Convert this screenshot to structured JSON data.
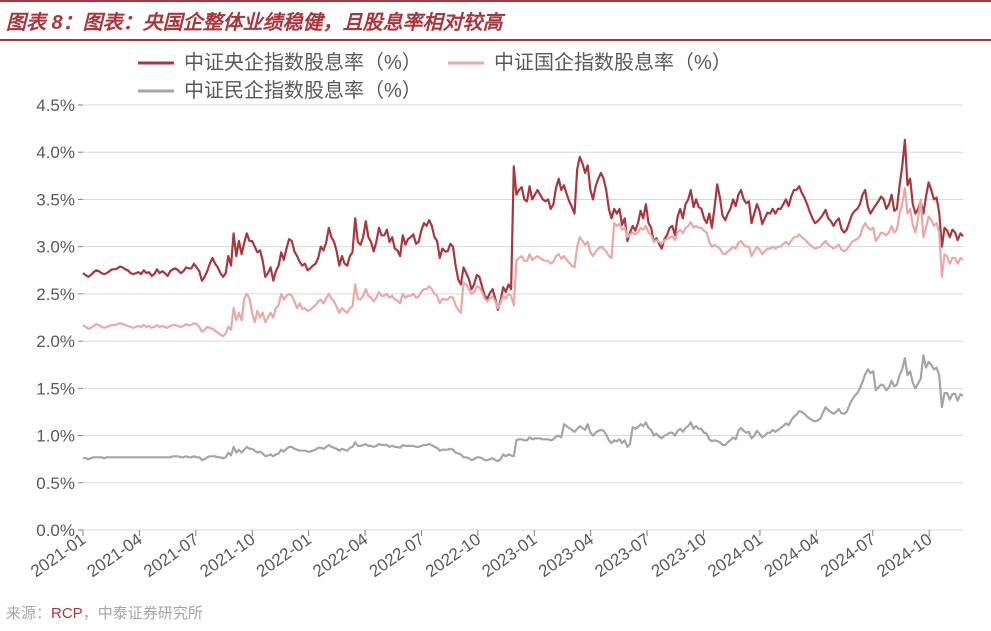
{
  "title": "图表 8：图表：央国企整体业绩稳健，且股息率相对较高",
  "source_prefix": "来源：",
  "source_rcp": "RCP",
  "source_suffix": "，中泰证券研究所",
  "chart": {
    "type": "line",
    "ylim": [
      0.0,
      4.5
    ],
    "ytick_step": 0.5,
    "y_suffix": "%",
    "x_labels": [
      "2021-01",
      "2021-04",
      "2021-07",
      "2021-10",
      "2022-01",
      "2022-04",
      "2022-07",
      "2022-10",
      "2023-01",
      "2023-04",
      "2023-07",
      "2023-10",
      "2024-01",
      "2024-04",
      "2024-07",
      "2024-10"
    ],
    "grid_color": "#d9d9d9",
    "background_color": "#ffffff",
    "line_width": 2.2,
    "series": [
      {
        "name": "中证央企指数股息率（%）",
        "color": "#a8373e",
        "data": [
          2.72,
          2.7,
          2.68,
          2.7,
          2.73,
          2.75,
          2.74,
          2.72,
          2.71,
          2.72,
          2.74,
          2.76,
          2.76,
          2.77,
          2.79,
          2.78,
          2.76,
          2.75,
          2.72,
          2.71,
          2.72,
          2.73,
          2.71,
          2.75,
          2.72,
          2.73,
          2.69,
          2.71,
          2.76,
          2.72,
          2.74,
          2.72,
          2.69,
          2.74,
          2.76,
          2.77,
          2.75,
          2.72,
          2.74,
          2.78,
          2.77,
          2.77,
          2.82,
          2.78,
          2.74,
          2.64,
          2.68,
          2.74,
          2.82,
          2.88,
          2.82,
          2.78,
          2.72,
          2.68,
          2.72,
          2.9,
          2.8,
          3.14,
          2.9,
          3.06,
          2.92,
          3.04,
          3.14,
          3.06,
          3.06,
          3.0,
          2.94,
          2.96,
          2.85,
          2.68,
          2.72,
          2.78,
          2.64,
          2.74,
          2.8,
          2.94,
          2.86,
          2.98,
          3.08,
          3.06,
          2.95,
          2.9,
          2.84,
          2.8,
          2.82,
          2.75,
          2.77,
          2.8,
          2.82,
          2.88,
          3.0,
          2.96,
          3.04,
          3.2,
          3.1,
          3.05,
          2.95,
          2.8,
          2.9,
          2.82,
          2.8,
          2.9,
          2.94,
          3.3,
          3.05,
          3.02,
          3.1,
          3.27,
          3.1,
          3.05,
          2.95,
          3.05,
          3.2,
          3.12,
          3.12,
          3.18,
          3.05,
          3.1,
          2.98,
          2.96,
          2.9,
          3.12,
          3.02,
          3.08,
          3.1,
          3.13,
          3.03,
          3.05,
          3.17,
          3.25,
          3.22,
          3.28,
          3.22,
          3.1,
          3.06,
          2.88,
          2.98,
          2.95,
          2.95,
          3.03,
          3.0,
          2.8,
          2.65,
          2.6,
          2.78,
          2.72,
          2.66,
          2.55,
          2.6,
          2.7,
          2.68,
          2.58,
          2.48,
          2.45,
          2.51,
          2.55,
          2.45,
          2.33,
          2.43,
          2.57,
          2.52,
          2.6,
          2.55,
          3.85,
          3.55,
          3.6,
          3.63,
          3.5,
          3.48,
          3.64,
          3.5,
          3.55,
          3.6,
          3.55,
          3.5,
          3.48,
          3.5,
          3.4,
          3.45,
          3.62,
          3.72,
          3.6,
          3.65,
          3.56,
          3.48,
          3.42,
          3.35,
          3.82,
          3.95,
          3.88,
          3.78,
          3.86,
          3.6,
          3.5,
          3.64,
          3.72,
          3.78,
          3.72,
          3.6,
          3.4,
          3.3,
          3.4,
          3.35,
          3.4,
          3.23,
          3.3,
          3.06,
          3.15,
          3.22,
          3.17,
          3.25,
          3.38,
          3.3,
          3.45,
          3.25,
          3.2,
          3.05,
          3.09,
          3.03,
          2.98,
          3.08,
          3.12,
          3.2,
          3.22,
          3.12,
          3.32,
          3.4,
          3.3,
          3.45,
          3.5,
          3.6,
          3.42,
          3.5,
          3.42,
          3.4,
          3.3,
          3.25,
          3.35,
          3.2,
          3.42,
          3.66,
          3.52,
          3.33,
          3.28,
          3.35,
          3.4,
          3.5,
          3.43,
          3.55,
          3.6,
          3.5,
          3.46,
          3.48,
          3.25,
          3.35,
          3.45,
          3.38,
          3.24,
          3.3,
          3.36,
          3.35,
          3.4,
          3.35,
          3.4,
          3.4,
          3.45,
          3.5,
          3.43,
          3.53,
          3.6,
          3.6,
          3.64,
          3.57,
          3.52,
          3.45,
          3.37,
          3.3,
          3.25,
          3.27,
          3.3,
          3.34,
          3.39,
          3.3,
          3.27,
          3.22,
          3.27,
          3.3,
          3.19,
          3.15,
          3.18,
          3.26,
          3.34,
          3.38,
          3.4,
          3.45,
          3.55,
          3.6,
          3.42,
          3.35,
          3.4,
          3.44,
          3.48,
          3.53,
          3.5,
          3.4,
          3.45,
          3.55,
          3.38,
          3.4,
          3.65,
          3.85,
          4.13,
          3.65,
          3.72,
          3.45,
          3.35,
          3.4,
          3.48,
          3.35,
          3.53,
          3.68,
          3.6,
          3.5,
          3.52,
          3.36,
          3.0,
          3.2,
          3.17,
          3.1,
          3.18,
          3.15,
          3.07,
          3.14,
          3.11
        ]
      },
      {
        "name": "中证国企指数股息率（%）",
        "color": "#e8a9a7",
        "data": [
          2.17,
          2.15,
          2.13,
          2.14,
          2.16,
          2.18,
          2.17,
          2.15,
          2.14,
          2.15,
          2.16,
          2.17,
          2.17,
          2.18,
          2.19,
          2.18,
          2.17,
          2.16,
          2.15,
          2.14,
          2.15,
          2.16,
          2.15,
          2.17,
          2.15,
          2.16,
          2.14,
          2.15,
          2.17,
          2.15,
          2.16,
          2.15,
          2.14,
          2.16,
          2.17,
          2.17,
          2.16,
          2.15,
          2.16,
          2.18,
          2.17,
          2.17,
          2.19,
          2.18,
          2.15,
          2.1,
          2.12,
          2.15,
          2.14,
          2.13,
          2.11,
          2.09,
          2.07,
          2.05,
          2.08,
          2.15,
          2.12,
          2.35,
          2.22,
          2.3,
          2.22,
          2.45,
          2.5,
          2.45,
          2.3,
          2.2,
          2.32,
          2.25,
          2.3,
          2.2,
          2.25,
          2.3,
          2.25,
          2.35,
          2.38,
          2.5,
          2.44,
          2.48,
          2.5,
          2.48,
          2.42,
          2.35,
          2.4,
          2.34,
          2.35,
          2.32,
          2.33,
          2.36,
          2.38,
          2.42,
          2.44,
          2.4,
          2.45,
          2.5,
          2.45,
          2.42,
          2.36,
          2.3,
          2.35,
          2.32,
          2.3,
          2.35,
          2.37,
          2.6,
          2.45,
          2.44,
          2.48,
          2.55,
          2.48,
          2.46,
          2.42,
          2.46,
          2.52,
          2.48,
          2.48,
          2.5,
          2.46,
          2.48,
          2.44,
          2.43,
          2.4,
          2.5,
          2.46,
          2.48,
          2.48,
          2.5,
          2.46,
          2.47,
          2.52,
          2.55,
          2.55,
          2.58,
          2.55,
          2.5,
          2.48,
          2.4,
          2.45,
          2.44,
          2.44,
          2.47,
          2.46,
          2.38,
          2.33,
          2.3,
          2.62,
          2.6,
          2.55,
          2.5,
          2.52,
          2.58,
          2.57,
          2.52,
          2.45,
          2.42,
          2.45,
          2.47,
          2.42,
          2.35,
          2.4,
          2.48,
          2.45,
          2.5,
          2.48,
          2.38,
          2.85,
          2.88,
          2.9,
          2.85,
          2.85,
          2.92,
          2.86,
          2.88,
          2.9,
          2.88,
          2.86,
          2.85,
          2.85,
          2.82,
          2.84,
          2.9,
          2.92,
          2.87,
          2.9,
          2.86,
          2.83,
          2.8,
          2.78,
          3.0,
          3.1,
          3.06,
          3.02,
          3.05,
          2.94,
          2.9,
          2.95,
          2.98,
          3.0,
          2.98,
          2.95,
          2.9,
          2.88,
          3.25,
          3.22,
          3.24,
          3.18,
          3.2,
          3.1,
          3.13,
          3.15,
          3.13,
          3.15,
          3.2,
          3.18,
          3.22,
          3.15,
          3.12,
          3.05,
          3.07,
          3.05,
          3.03,
          3.07,
          3.08,
          3.1,
          3.11,
          3.07,
          3.15,
          3.18,
          3.14,
          3.2,
          3.22,
          3.26,
          3.2,
          3.22,
          3.2,
          3.2,
          3.17,
          3.15,
          3.05,
          3.0,
          3.02,
          3.0,
          2.98,
          2.93,
          2.92,
          2.95,
          2.97,
          3.0,
          2.98,
          3.04,
          3.06,
          3.02,
          3.0,
          3.0,
          2.9,
          2.95,
          3.0,
          2.97,
          2.92,
          2.95,
          2.98,
          2.98,
          3.0,
          2.98,
          3.0,
          3.0,
          3.03,
          3.05,
          3.02,
          3.06,
          3.1,
          3.1,
          3.13,
          3.1,
          3.08,
          3.05,
          3.02,
          3.0,
          2.98,
          2.99,
          3.0,
          3.03,
          3.06,
          3.02,
          3.0,
          2.98,
          3.0,
          3.02,
          2.97,
          2.95,
          2.97,
          3.01,
          3.05,
          3.07,
          3.08,
          3.11,
          3.2,
          3.25,
          3.2,
          3.18,
          3.2,
          3.06,
          3.1,
          3.15,
          3.14,
          3.12,
          3.15,
          3.22,
          3.15,
          3.18,
          3.35,
          3.45,
          3.62,
          3.35,
          3.4,
          3.23,
          3.15,
          3.3,
          3.5,
          3.1,
          3.2,
          3.32,
          3.28,
          3.22,
          3.25,
          3.15,
          2.68,
          2.92,
          2.9,
          2.82,
          2.88,
          2.88,
          2.82,
          2.88,
          2.86
        ]
      },
      {
        "name": "中证民企指数股息率（%）",
        "color": "#a5a5a5",
        "data": [
          0.76,
          0.76,
          0.75,
          0.76,
          0.77,
          0.77,
          0.77,
          0.77,
          0.76,
          0.77,
          0.77,
          0.77,
          0.77,
          0.77,
          0.77,
          0.77,
          0.77,
          0.77,
          0.77,
          0.77,
          0.77,
          0.77,
          0.77,
          0.77,
          0.77,
          0.77,
          0.77,
          0.77,
          0.77,
          0.77,
          0.77,
          0.77,
          0.77,
          0.77,
          0.78,
          0.78,
          0.78,
          0.77,
          0.77,
          0.78,
          0.77,
          0.77,
          0.78,
          0.77,
          0.77,
          0.74,
          0.75,
          0.77,
          0.78,
          0.78,
          0.78,
          0.77,
          0.77,
          0.76,
          0.77,
          0.82,
          0.79,
          0.88,
          0.82,
          0.85,
          0.82,
          0.85,
          0.88,
          0.86,
          0.86,
          0.84,
          0.82,
          0.83,
          0.81,
          0.78,
          0.79,
          0.8,
          0.78,
          0.8,
          0.81,
          0.85,
          0.83,
          0.86,
          0.88,
          0.88,
          0.86,
          0.85,
          0.84,
          0.84,
          0.84,
          0.83,
          0.83,
          0.84,
          0.85,
          0.87,
          0.87,
          0.86,
          0.88,
          0.9,
          0.88,
          0.87,
          0.86,
          0.84,
          0.86,
          0.85,
          0.84,
          0.87,
          0.88,
          0.93,
          0.89,
          0.89,
          0.9,
          0.91,
          0.89,
          0.89,
          0.88,
          0.89,
          0.91,
          0.9,
          0.9,
          0.9,
          0.88,
          0.89,
          0.88,
          0.88,
          0.87,
          0.9,
          0.89,
          0.89,
          0.89,
          0.89,
          0.88,
          0.88,
          0.89,
          0.9,
          0.9,
          0.91,
          0.9,
          0.88,
          0.87,
          0.84,
          0.85,
          0.85,
          0.85,
          0.86,
          0.85,
          0.82,
          0.81,
          0.8,
          0.77,
          0.77,
          0.76,
          0.74,
          0.75,
          0.77,
          0.77,
          0.76,
          0.74,
          0.74,
          0.75,
          0.76,
          0.74,
          0.73,
          0.75,
          0.8,
          0.78,
          0.8,
          0.79,
          0.78,
          0.95,
          0.96,
          0.96,
          0.95,
          0.95,
          0.98,
          0.96,
          0.97,
          0.97,
          0.97,
          0.96,
          0.96,
          0.96,
          0.95,
          0.96,
          0.99,
          1.0,
          0.98,
          1.12,
          1.1,
          1.08,
          1.06,
          1.04,
          1.07,
          1.1,
          1.08,
          1.06,
          1.12,
          1.03,
          1.0,
          1.03,
          1.05,
          1.06,
          1.05,
          1.01,
          0.95,
          0.92,
          0.95,
          0.94,
          0.96,
          0.92,
          0.95,
          0.88,
          0.91,
          1.09,
          1.07,
          1.09,
          1.12,
          1.1,
          1.14,
          1.08,
          1.06,
          1.0,
          1.02,
          0.99,
          0.97,
          1.0,
          1.01,
          1.03,
          1.03,
          1.0,
          1.05,
          1.07,
          1.04,
          1.08,
          1.1,
          1.14,
          1.07,
          1.1,
          1.07,
          1.07,
          1.03,
          1.02,
          0.96,
          0.94,
          0.95,
          0.94,
          0.93,
          0.9,
          0.9,
          0.93,
          0.95,
          0.98,
          0.96,
          1.05,
          1.08,
          1.05,
          1.03,
          1.04,
          0.97,
          1.0,
          1.05,
          1.02,
          0.98,
          1.0,
          1.03,
          1.03,
          1.06,
          1.04,
          1.06,
          1.08,
          1.1,
          1.13,
          1.11,
          1.16,
          1.2,
          1.22,
          1.26,
          1.25,
          1.23,
          1.2,
          1.18,
          1.16,
          1.15,
          1.16,
          1.18,
          1.24,
          1.3,
          1.27,
          1.25,
          1.23,
          1.25,
          1.28,
          1.24,
          1.23,
          1.25,
          1.32,
          1.38,
          1.42,
          1.45,
          1.5,
          1.57,
          1.65,
          1.7,
          1.66,
          1.68,
          1.48,
          1.51,
          1.54,
          1.53,
          1.48,
          1.51,
          1.58,
          1.52,
          1.54,
          1.64,
          1.7,
          1.82,
          1.64,
          1.68,
          1.56,
          1.5,
          1.55,
          1.6,
          1.85,
          1.72,
          1.78,
          1.75,
          1.7,
          1.72,
          1.64,
          1.3,
          1.45,
          1.45,
          1.38,
          1.44,
          1.44,
          1.37,
          1.44,
          1.42
        ]
      }
    ]
  }
}
